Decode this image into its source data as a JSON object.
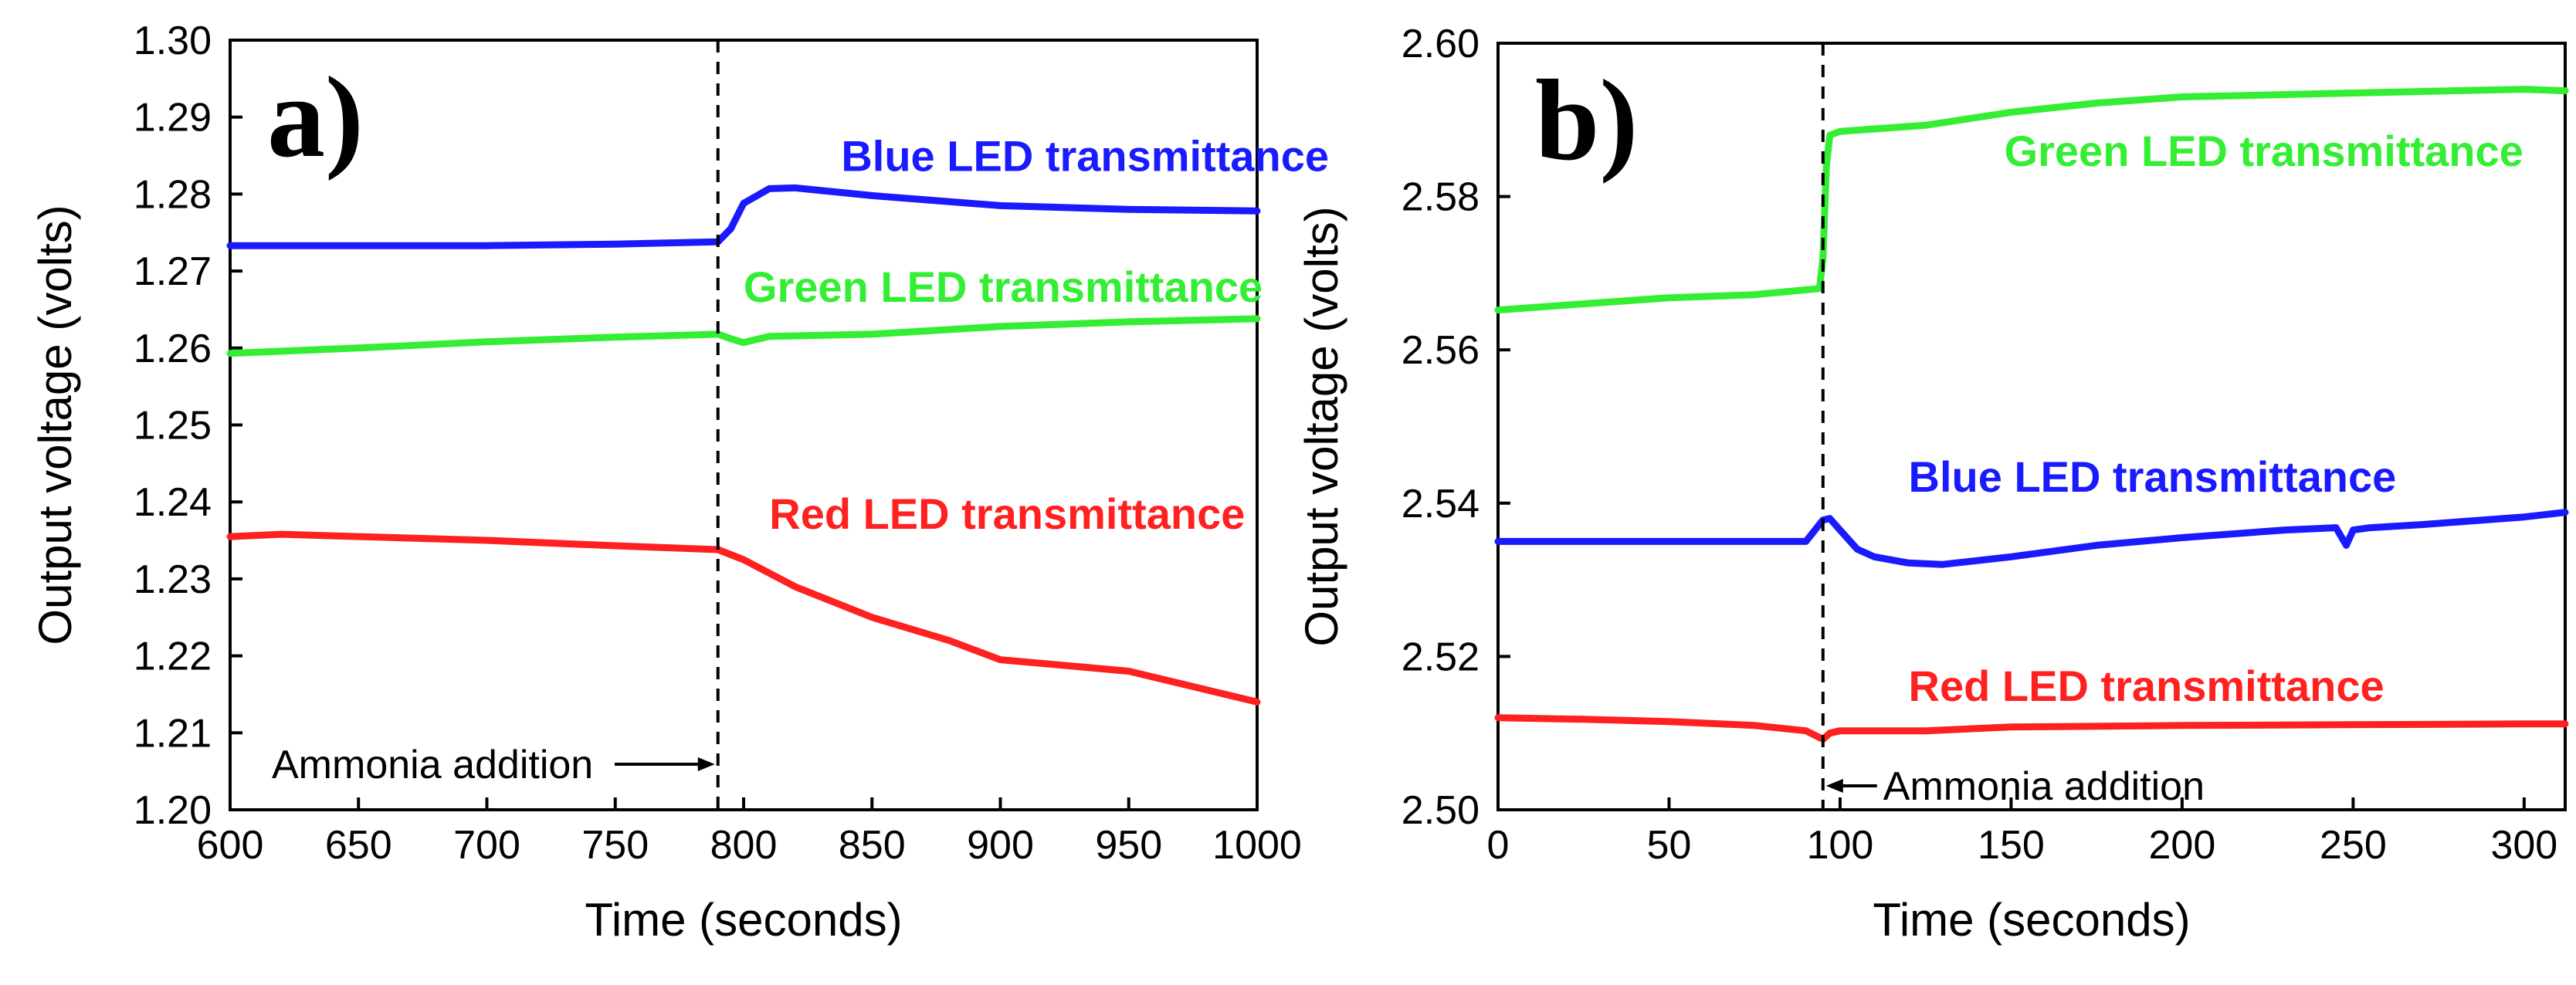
{
  "chart_data": [
    {
      "type": "line",
      "panel_label": "a)",
      "xlabel": "Time (seconds)",
      "ylabel": "Output voltage (volts)",
      "xlim": [
        600,
        1000
      ],
      "ylim": [
        1.2,
        1.3
      ],
      "x_ticks": [
        "600",
        "650",
        "700",
        "750",
        "800",
        "850",
        "900",
        "950",
        "1000"
      ],
      "y_ticks": [
        "1.20",
        "1.21",
        "1.22",
        "1.23",
        "1.24",
        "1.25",
        "1.26",
        "1.27",
        "1.28",
        "1.29",
        "1.30"
      ],
      "event": {
        "x": 790,
        "label": "Ammonia addition",
        "arrow": "right"
      },
      "series": [
        {
          "name": "Blue LED transmittance",
          "color": "#1a1aff",
          "label_anchor": [
            838,
            1.283
          ],
          "x": [
            600,
            650,
            700,
            750,
            790,
            795,
            800,
            810,
            820,
            850,
            900,
            950,
            1000
          ],
          "y": [
            1.2733,
            1.2733,
            1.2733,
            1.2735,
            1.2738,
            1.2755,
            1.2788,
            1.2807,
            1.2808,
            1.2798,
            1.2785,
            1.278,
            1.2778
          ]
        },
        {
          "name": "Green LED transmittance",
          "color": "#33ee33",
          "label_anchor": [
            800,
            1.266
          ],
          "x": [
            600,
            650,
            700,
            750,
            790,
            795,
            800,
            810,
            850,
            900,
            950,
            1000
          ],
          "y": [
            1.2593,
            1.26,
            1.2608,
            1.2614,
            1.2618,
            1.2612,
            1.2607,
            1.2615,
            1.2618,
            1.2628,
            1.2634,
            1.2638
          ]
        },
        {
          "name": "Red LED transmittance",
          "color": "#ff2020",
          "label_anchor": [
            810,
            1.2365
          ],
          "x": [
            600,
            620,
            650,
            700,
            750,
            790,
            800,
            820,
            850,
            880,
            900,
            950,
            1000
          ],
          "y": [
            1.2355,
            1.2358,
            1.2355,
            1.235,
            1.2343,
            1.2338,
            1.2325,
            1.229,
            1.225,
            1.222,
            1.2195,
            1.218,
            1.214
          ]
        }
      ]
    },
    {
      "type": "line",
      "panel_label": "b)",
      "xlabel": "Time (seconds)",
      "ylabel": "Output voltage (volts)",
      "xlim": [
        0,
        312
      ],
      "ylim": [
        2.5,
        2.6
      ],
      "x_ticks": [
        "0",
        "50",
        "100",
        "150",
        "200",
        "250",
        "300"
      ],
      "y_ticks": [
        "2.50",
        "2.52",
        "2.54",
        "2.56",
        "2.58",
        "2.60"
      ],
      "event": {
        "x": 95,
        "label": "Ammonia addition",
        "arrow": "left"
      },
      "series": [
        {
          "name": "Green LED transmittance",
          "color": "#33ee33",
          "label_anchor": [
            148,
            2.584
          ],
          "x": [
            0,
            25,
            50,
            75,
            94,
            95,
            96,
            97,
            100,
            125,
            150,
            175,
            200,
            250,
            300,
            312
          ],
          "y": [
            2.5652,
            2.566,
            2.5668,
            2.5672,
            2.568,
            2.572,
            2.584,
            2.588,
            2.5885,
            2.5893,
            2.591,
            2.5922,
            2.593,
            2.5935,
            2.594,
            2.5938
          ]
        },
        {
          "name": "Blue LED transmittance",
          "color": "#1a1aff",
          "label_anchor": [
            120,
            2.5415
          ],
          "x": [
            0,
            25,
            50,
            75,
            90,
            95,
            97,
            100,
            105,
            110,
            120,
            130,
            150,
            175,
            200,
            230,
            245,
            248,
            250,
            255,
            270,
            300,
            312
          ],
          "y": [
            2.535,
            2.535,
            2.535,
            2.535,
            2.535,
            2.5378,
            2.538,
            2.5365,
            2.534,
            2.533,
            2.5322,
            2.532,
            2.533,
            2.5345,
            2.5355,
            2.5365,
            2.5368,
            2.5345,
            2.5365,
            2.5368,
            2.5372,
            2.5382,
            2.5388
          ]
        },
        {
          "name": "Red LED transmittance",
          "color": "#ff2020",
          "label_anchor": [
            120,
            2.5142
          ],
          "x": [
            0,
            25,
            50,
            75,
            90,
            95,
            97,
            100,
            125,
            150,
            200,
            250,
            300,
            312
          ],
          "y": [
            2.512,
            2.5118,
            2.5115,
            2.511,
            2.5103,
            2.5092,
            2.51,
            2.5103,
            2.5103,
            2.5108,
            2.511,
            2.5111,
            2.5112,
            2.5112
          ]
        }
      ]
    }
  ]
}
